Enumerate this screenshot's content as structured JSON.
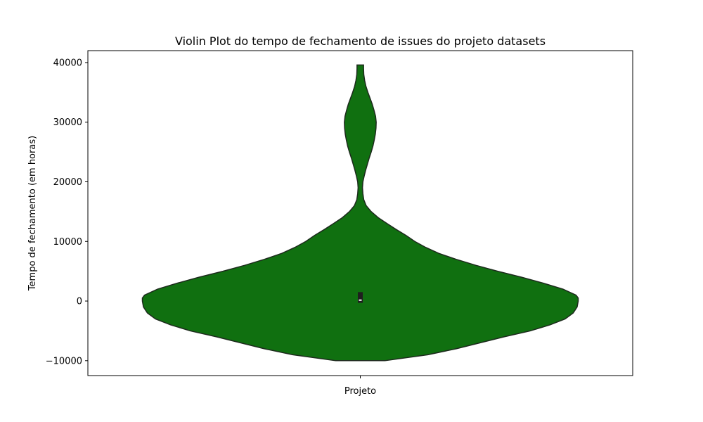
{
  "chart_data": {
    "type": "violin",
    "title": "Violin Plot do tempo de fechamento de issues do projeto datasets",
    "xlabel": "",
    "ylabel": "Tempo de fechamento (em horas)",
    "categories": [
      "Projeto"
    ],
    "ylim": [
      -12500,
      42000
    ],
    "yticks": [
      -10000,
      0,
      10000,
      20000,
      30000,
      40000
    ],
    "ytick_labels": [
      "−10000",
      "0",
      "10000",
      "20000",
      "30000",
      "40000"
    ],
    "grid": false,
    "legend": "none",
    "colors": {
      "fill": "#107010",
      "stroke": "#1d2a1d",
      "box": "#1f1f1f",
      "median": "#ffffff"
    },
    "density": {
      "y": [
        -10000,
        -9000,
        -8000,
        -7000,
        -6000,
        -5000,
        -4000,
        -3000,
        -2000,
        -1000,
        0,
        500,
        1000,
        2000,
        3000,
        4000,
        5000,
        6000,
        7000,
        8000,
        9000,
        10000,
        11000,
        12000,
        13000,
        14000,
        15000,
        16000,
        17000,
        18000,
        19000,
        20000,
        21000,
        22000,
        23000,
        24000,
        25000,
        26000,
        27000,
        28000,
        29000,
        30000,
        31000,
        32000,
        33000,
        34000,
        35000,
        36000,
        37000,
        38000,
        39000,
        39600
      ],
      "width": [
        0.113,
        0.31,
        0.44,
        0.55,
        0.66,
        0.78,
        0.87,
        0.94,
        0.977,
        0.995,
        1.0,
        1.0,
        0.99,
        0.93,
        0.84,
        0.74,
        0.63,
        0.53,
        0.44,
        0.36,
        0.3,
        0.25,
        0.21,
        0.165,
        0.123,
        0.082,
        0.05,
        0.027,
        0.016,
        0.012,
        0.01,
        0.012,
        0.018,
        0.025,
        0.033,
        0.041,
        0.05,
        0.058,
        0.064,
        0.069,
        0.072,
        0.073,
        0.07,
        0.063,
        0.055,
        0.045,
        0.035,
        0.026,
        0.02,
        0.016,
        0.015,
        0.015
      ]
    },
    "box": {
      "q1": -300,
      "median": 150,
      "q3": 1500
    }
  }
}
